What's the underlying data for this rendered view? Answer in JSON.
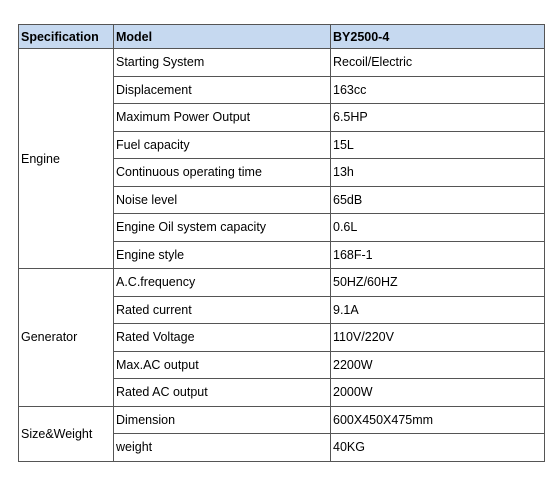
{
  "table": {
    "header": [
      "Specification",
      "Model",
      "BY2500-4"
    ],
    "groups": [
      {
        "label": "Engine",
        "rows": [
          [
            "Starting System",
            "Recoil/Electric"
          ],
          [
            "Displacement",
            "163cc"
          ],
          [
            "Maximum Power Output",
            "6.5HP"
          ],
          [
            "Fuel capacity",
            "15L"
          ],
          [
            "Continuous operating time",
            "13h"
          ],
          [
            "Noise level",
            "65dB"
          ],
          [
            "Engine Oil system capacity",
            "0.6L"
          ],
          [
            "Engine style",
            "168F-1"
          ]
        ]
      },
      {
        "label": "Generator",
        "rows": [
          [
            "A.C.frequency",
            "50HZ/60HZ"
          ],
          [
            "Rated current",
            "9.1A"
          ],
          [
            "Rated Voltage",
            "110V/220V"
          ],
          [
            "Max.AC output",
            "2200W"
          ],
          [
            "Rated AC output",
            "2000W"
          ]
        ]
      },
      {
        "label": "Size&Weight",
        "rows": [
          [
            "Dimension",
            "600X450X475mm"
          ],
          [
            "weight",
            "40KG"
          ]
        ]
      }
    ]
  }
}
